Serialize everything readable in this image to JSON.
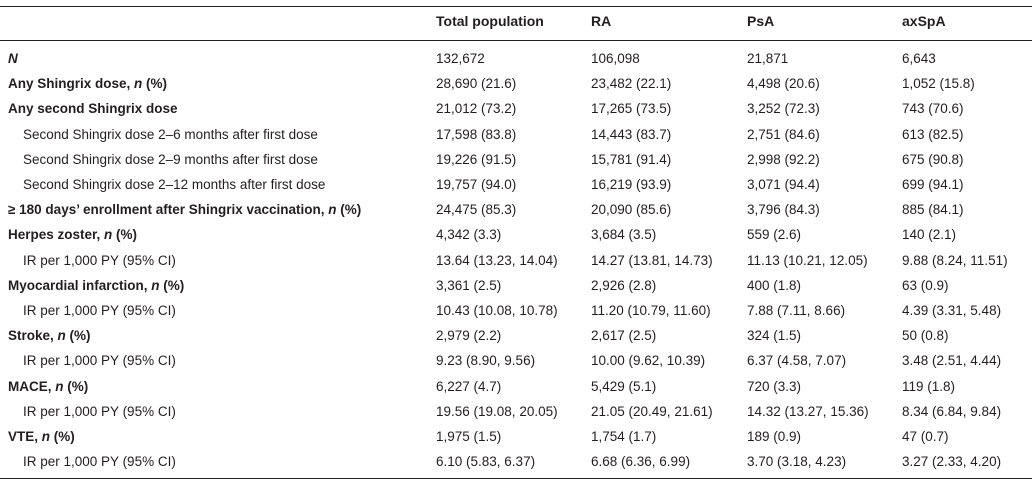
{
  "table": {
    "headers": [
      "",
      "Total population",
      "RA",
      "PsA",
      "axSpA"
    ],
    "rows": [
      {
        "label": "N",
        "label_prefix": "",
        "label_suffix": "",
        "style": "bold-italic",
        "values": [
          "132,672",
          "106,098",
          "21,871",
          "6,643"
        ]
      },
      {
        "label": "Any Shingrix dose, ",
        "label_italic": "n",
        "label_suffix": " (%)",
        "style": "bold",
        "values": [
          "28,690 (21.6)",
          "23,482 (22.1)",
          "4,498 (20.6)",
          "1,052 (15.8)"
        ]
      },
      {
        "label": "Any second Shingrix dose",
        "label_italic": "",
        "label_suffix": "",
        "style": "bold",
        "values": [
          "21,012 (73.2)",
          "17,265 (73.5)",
          "3,252 (72.3)",
          "743 (70.6)"
        ]
      },
      {
        "label": "Second Shingrix dose 2–6 months after first dose",
        "label_italic": "",
        "label_suffix": "",
        "style": "indent",
        "values": [
          "17,598 (83.8)",
          "14,443 (83.7)",
          "2,751 (84.6)",
          "613 (82.5)"
        ]
      },
      {
        "label": "Second Shingrix dose 2–9 months after first dose",
        "label_italic": "",
        "label_suffix": "",
        "style": "indent",
        "values": [
          "19,226 (91.5)",
          "15,781 (91.4)",
          "2,998 (92.2)",
          "675 (90.8)"
        ]
      },
      {
        "label": "Second Shingrix dose 2–12 months after first dose",
        "label_italic": "",
        "label_suffix": "",
        "style": "indent",
        "values": [
          "19,757 (94.0)",
          "16,219 (93.9)",
          "3,071 (94.4)",
          "699 (94.1)"
        ]
      },
      {
        "label": "≥ 180 days’ enrollment after Shingrix vaccination, ",
        "label_italic": "n",
        "label_suffix": " (%)",
        "style": "bold",
        "values": [
          "24,475 (85.3)",
          "20,090 (85.6)",
          "3,796 (84.3)",
          "885 (84.1)"
        ]
      },
      {
        "label": "Herpes zoster, ",
        "label_italic": "n",
        "label_suffix": " (%)",
        "style": "bold",
        "values": [
          "4,342 (3.3)",
          "3,684 (3.5)",
          "559 (2.6)",
          "140 (2.1)"
        ]
      },
      {
        "label": "IR per 1,000 PY (95% CI)",
        "label_italic": "",
        "label_suffix": "",
        "style": "indent",
        "values": [
          "13.64 (13.23, 14.04)",
          "14.27 (13.81, 14.73)",
          "11.13 (10.21, 12.05)",
          "9.88 (8.24, 11.51)"
        ]
      },
      {
        "label": "Myocardial infarction, ",
        "label_italic": "n",
        "label_suffix": " (%)",
        "style": "bold",
        "values": [
          "3,361 (2.5)",
          "2,926 (2.8)",
          "400 (1.8)",
          "63 (0.9)"
        ]
      },
      {
        "label": "IR per 1,000 PY (95% CI)",
        "label_italic": "",
        "label_suffix": "",
        "style": "indent",
        "values": [
          "10.43 (10.08, 10.78)",
          "11.20 (10.79, 11.60)",
          "7.88 (7.11, 8.66)",
          "4.39 (3.31, 5.48)"
        ]
      },
      {
        "label": "Stroke, ",
        "label_italic": "n",
        "label_suffix": " (%)",
        "style": "bold",
        "values": [
          "2,979 (2.2)",
          "2,617 (2.5)",
          "324 (1.5)",
          "50 (0.8)"
        ]
      },
      {
        "label": "IR per 1,000 PY (95% CI)",
        "label_italic": "",
        "label_suffix": "",
        "style": "indent",
        "values": [
          "9.23 (8.90, 9.56)",
          "10.00 (9.62, 10.39)",
          "6.37 (4.58, 7.07)",
          "3.48 (2.51, 4.44)"
        ]
      },
      {
        "label": "MACE, ",
        "label_italic": "n",
        "label_suffix": " (%)",
        "style": "bold",
        "values": [
          "6,227 (4.7)",
          "5,429 (5.1)",
          "720 (3.3)",
          "119 (1.8)"
        ]
      },
      {
        "label": "IR per 1,000 PY (95% CI)",
        "label_italic": "",
        "label_suffix": "",
        "style": "indent",
        "values": [
          "19.56 (19.08, 20.05)",
          "21.05 (20.49, 21.61)",
          "14.32 (13.27, 15.36)",
          "8.34 (6.84, 9.84)"
        ]
      },
      {
        "label": "VTE, ",
        "label_italic": "n",
        "label_suffix": " (%)",
        "style": "bold",
        "values": [
          "1,975 (1.5)",
          "1,754 (1.7)",
          "189 (0.9)",
          "47 (0.7)"
        ]
      },
      {
        "label": "IR per 1,000 PY (95% CI)",
        "label_italic": "",
        "label_suffix": "",
        "style": "indent",
        "values": [
          "6.10 (5.83, 6.37)",
          "6.68 (6.36, 6.99)",
          "3.70 (3.18, 4.23)",
          "3.27 (2.33, 4.20)"
        ]
      }
    ]
  }
}
